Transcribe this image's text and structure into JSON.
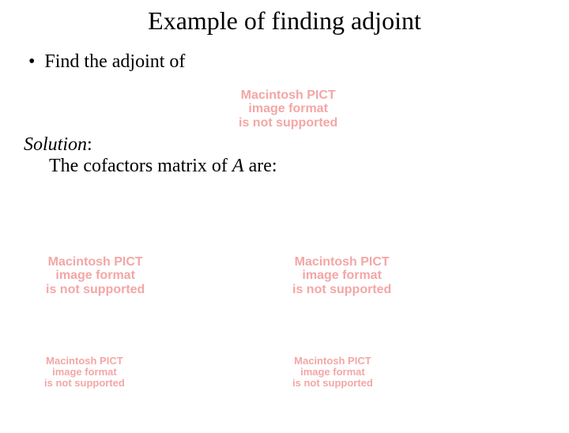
{
  "title": "Example of finding adjoint",
  "bullet": {
    "marker": "•",
    "text": "Find the adjoint of"
  },
  "solution": {
    "label": "Solution",
    "colon": ":",
    "body_prefix": "The cofactors matrix of ",
    "body_A": "A",
    "body_suffix": " are:"
  },
  "placeholder": {
    "line1": "Macintosh PICT",
    "line2": "image format",
    "line3": "is not supported"
  },
  "colors": {
    "background": "#ffffff",
    "text": "#000000",
    "placeholder_text": "#f4a6a6"
  }
}
